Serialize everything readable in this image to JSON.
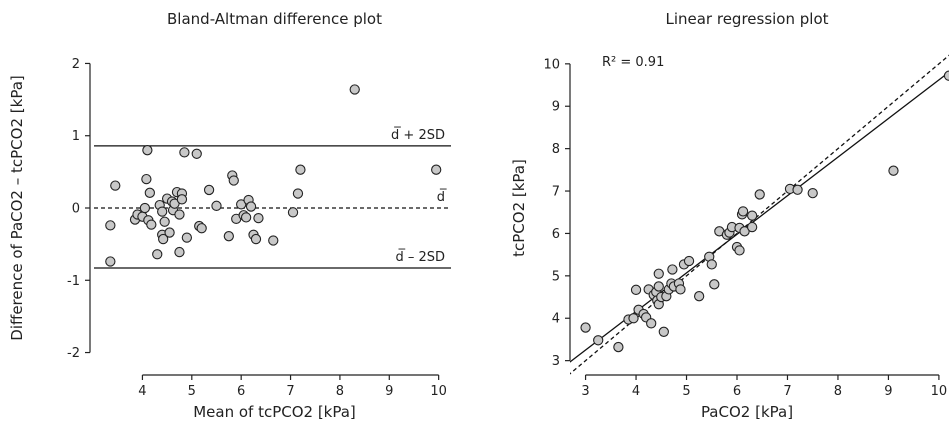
{
  "chart_data": [
    {
      "type": "scatter",
      "title": "Bland-Altman difference plot",
      "xlabel": "Mean of tcPCO2 [kPa]",
      "ylabel": "Difference of PaCO2 – tcPCO2 [kPa]",
      "xlim": [
        3.1,
        10.25
      ],
      "ylim": [
        -2.2,
        2.2
      ],
      "xticks": [
        4,
        5,
        6,
        7,
        8,
        9,
        10
      ],
      "yticks": [
        -2,
        -1,
        0,
        1,
        2
      ],
      "lines": [
        {
          "label": "d̅ + 2SD",
          "y": 0.86,
          "style": "solid"
        },
        {
          "label": "d̅",
          "y": 0.0,
          "style": "dashed"
        },
        {
          "label": "d̅ – 2SD",
          "y": -0.83,
          "style": "solid"
        }
      ],
      "points": [
        [
          3.35,
          -0.74
        ],
        [
          3.35,
          -0.24
        ],
        [
          3.45,
          0.31
        ],
        [
          3.85,
          -0.16
        ],
        [
          3.9,
          -0.09
        ],
        [
          4.0,
          -0.12
        ],
        [
          4.05,
          -0.0
        ],
        [
          4.08,
          0.4
        ],
        [
          4.1,
          0.8
        ],
        [
          4.12,
          -0.17
        ],
        [
          4.15,
          0.21
        ],
        [
          4.18,
          -0.23
        ],
        [
          4.3,
          -0.64
        ],
        [
          4.35,
          0.04
        ],
        [
          4.4,
          -0.05
        ],
        [
          4.4,
          -0.37
        ],
        [
          4.42,
          -0.43
        ],
        [
          4.45,
          -0.19
        ],
        [
          4.5,
          0.13
        ],
        [
          4.55,
          -0.34
        ],
        [
          4.6,
          0.09
        ],
        [
          4.62,
          -0.03
        ],
        [
          4.65,
          0.06
        ],
        [
          4.7,
          0.22
        ],
        [
          4.75,
          -0.09
        ],
        [
          4.75,
          -0.61
        ],
        [
          4.8,
          0.2
        ],
        [
          4.8,
          0.12
        ],
        [
          4.85,
          0.77
        ],
        [
          4.9,
          -0.41
        ],
        [
          5.1,
          0.75
        ],
        [
          5.15,
          -0.25
        ],
        [
          5.2,
          -0.28
        ],
        [
          5.35,
          0.25
        ],
        [
          5.5,
          0.03
        ],
        [
          5.75,
          -0.39
        ],
        [
          5.82,
          0.45
        ],
        [
          5.85,
          0.38
        ],
        [
          5.9,
          -0.15
        ],
        [
          6.0,
          0.05
        ],
        [
          6.05,
          -0.1
        ],
        [
          6.1,
          -0.13
        ],
        [
          6.15,
          0.11
        ],
        [
          6.2,
          0.02
        ],
        [
          6.25,
          -0.37
        ],
        [
          6.3,
          -0.43
        ],
        [
          6.35,
          -0.14
        ],
        [
          6.65,
          -0.45
        ],
        [
          7.05,
          -0.06
        ],
        [
          7.15,
          0.2
        ],
        [
          7.2,
          0.53
        ],
        [
          8.3,
          1.64
        ],
        [
          9.95,
          0.53
        ]
      ]
    },
    {
      "type": "scatter",
      "title": "Linear regression plot",
      "xlabel": "PaCO2 [kPa]",
      "ylabel": "tcPCO2 [kPa]",
      "xlim": [
        2.85,
        10.2
      ],
      "ylim": [
        2.85,
        10.35
      ],
      "xticks": [
        3,
        4,
        5,
        6,
        7,
        8,
        9,
        10
      ],
      "yticks": [
        3,
        4,
        5,
        6,
        7,
        8,
        9,
        10
      ],
      "annotation": "R² = 0.91",
      "regression_line": {
        "slope": 0.91,
        "intercept": 0.52,
        "style": "solid"
      },
      "identity_line": {
        "slope": 1.0,
        "intercept": 0.0,
        "style": "dashed"
      },
      "points": [
        [
          3.0,
          3.78
        ],
        [
          3.25,
          3.48
        ],
        [
          3.65,
          3.32
        ],
        [
          3.85,
          3.97
        ],
        [
          3.95,
          4.0
        ],
        [
          4.0,
          4.67
        ],
        [
          4.05,
          4.2
        ],
        [
          4.15,
          4.1
        ],
        [
          4.2,
          4.02
        ],
        [
          4.25,
          4.68
        ],
        [
          4.3,
          3.88
        ],
        [
          4.35,
          4.55
        ],
        [
          4.4,
          4.62
        ],
        [
          4.42,
          4.42
        ],
        [
          4.45,
          4.33
        ],
        [
          4.45,
          4.75
        ],
        [
          4.45,
          5.05
        ],
        [
          4.5,
          4.5
        ],
        [
          4.55,
          3.68
        ],
        [
          4.6,
          4.52
        ],
        [
          4.65,
          4.68
        ],
        [
          4.7,
          4.82
        ],
        [
          4.72,
          5.15
        ],
        [
          4.75,
          4.75
        ],
        [
          4.85,
          4.82
        ],
        [
          4.88,
          4.68
        ],
        [
          4.95,
          5.27
        ],
        [
          5.05,
          5.35
        ],
        [
          5.25,
          4.52
        ],
        [
          5.45,
          5.45
        ],
        [
          5.5,
          5.27
        ],
        [
          5.55,
          4.8
        ],
        [
          5.65,
          6.05
        ],
        [
          5.8,
          5.97
        ],
        [
          5.85,
          6.02
        ],
        [
          5.9,
          6.15
        ],
        [
          6.0,
          5.68
        ],
        [
          6.05,
          5.6
        ],
        [
          6.05,
          6.13
        ],
        [
          6.1,
          6.45
        ],
        [
          6.12,
          6.52
        ],
        [
          6.15,
          6.05
        ],
        [
          6.3,
          6.15
        ],
        [
          6.3,
          6.42
        ],
        [
          6.45,
          6.92
        ],
        [
          7.05,
          7.05
        ],
        [
          7.2,
          7.03
        ],
        [
          7.5,
          6.95
        ],
        [
          9.1,
          7.48
        ],
        [
          10.2,
          9.72
        ]
      ]
    }
  ]
}
